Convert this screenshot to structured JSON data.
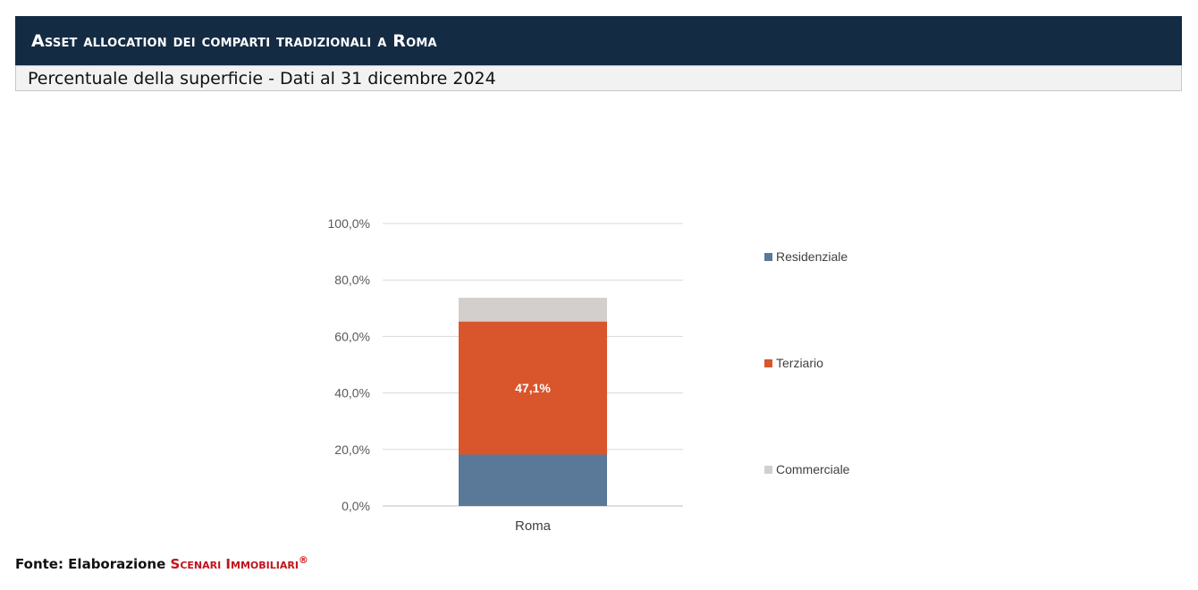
{
  "header": {
    "title": "Asset allocation dei comparti tradizionali a Roma",
    "subtitle": "Percentuale della superficie - Dati al 31 dicembre 2024"
  },
  "chart_data": {
    "type": "bar",
    "stacked": true,
    "categories": [
      "Roma"
    ],
    "series": [
      {
        "name": "Residenziale",
        "values": [
          18.2
        ],
        "color": "#5a7898"
      },
      {
        "name": "Terziario",
        "values": [
          47.1
        ],
        "color": "#d9552c",
        "data_labels": [
          "47,1%"
        ]
      },
      {
        "name": "Commerciale",
        "values": [
          8.4
        ],
        "color": "#d3cfcc"
      }
    ],
    "y_ticks": [
      "0,0%",
      "20,0%",
      "40,0%",
      "60,0%",
      "80,0%",
      "100,0%"
    ],
    "ylim": [
      0,
      100
    ],
    "grid": true,
    "legend_position": "right"
  },
  "source": {
    "prefix": "Fonte: Elaborazione",
    "brand": "Scenari Immobiliari",
    "mark": "®"
  }
}
